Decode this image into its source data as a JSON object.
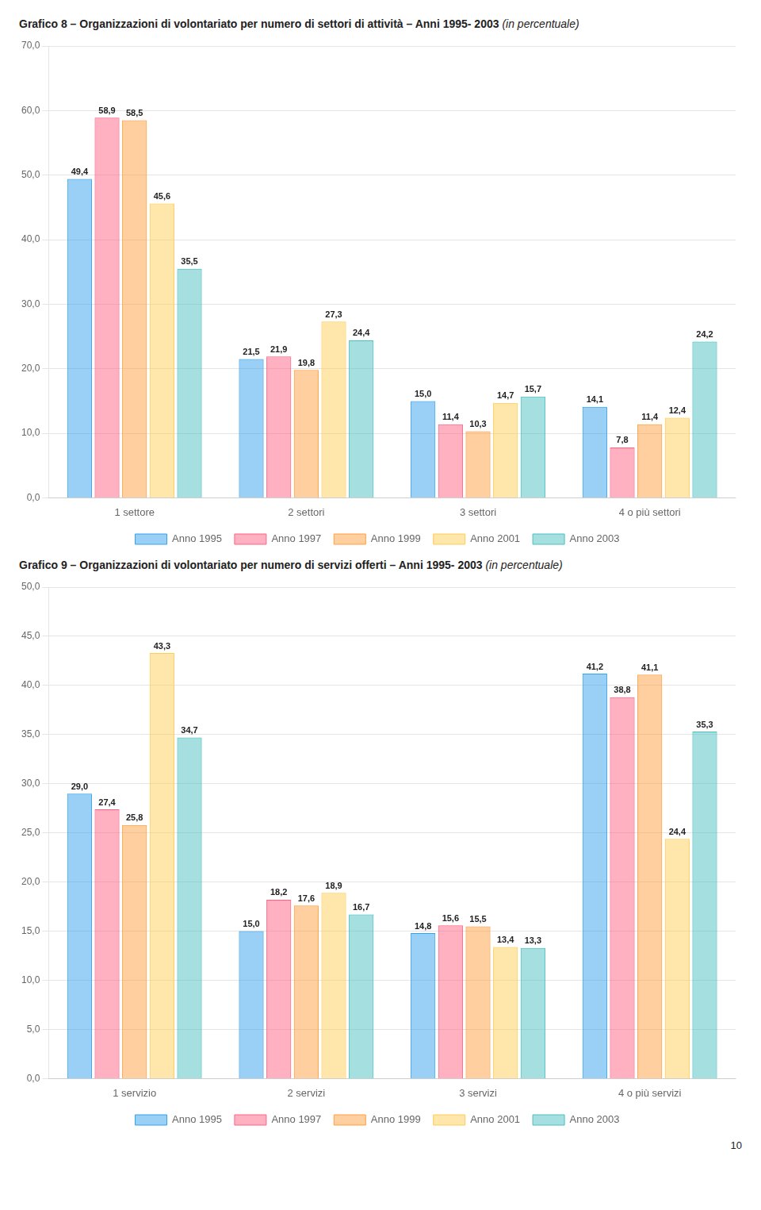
{
  "chart_data": [
    {
      "type": "bar",
      "title": "Grafico 8 – Organizzazioni di volontariato per numero di settori di attività – Anni 1995- 2003",
      "subtitle": "(in percentuale)",
      "categories": [
        "1 settore",
        "2 settori",
        "3 settori",
        "4 o più settori"
      ],
      "series": [
        {
          "name": "Anno 1995",
          "values": [
            49.4,
            21.5,
            15.0,
            14.1
          ],
          "value_labels": [
            "49,4",
            "21,5",
            "15,0",
            "14,1"
          ]
        },
        {
          "name": "Anno 1997",
          "values": [
            58.9,
            21.9,
            11.4,
            7.8
          ],
          "value_labels": [
            "58,9",
            "21,9",
            "11,4",
            "7,8"
          ]
        },
        {
          "name": "Anno 1999",
          "values": [
            58.5,
            19.8,
            10.3,
            11.4
          ],
          "value_labels": [
            "58,5",
            "19,8",
            "10,3",
            "11,4"
          ]
        },
        {
          "name": "Anno 2001",
          "values": [
            45.6,
            27.3,
            14.7,
            12.4
          ],
          "value_labels": [
            "45,6",
            "27,3",
            "14,7",
            "12,4"
          ]
        },
        {
          "name": "Anno 2003",
          "values": [
            35.5,
            24.4,
            15.7,
            24.2
          ],
          "value_labels": [
            "35,5",
            "24,4",
            "15,7",
            "24,2"
          ]
        }
      ],
      "ylim": [
        0,
        70
      ],
      "yticks": [
        {
          "value": 0,
          "label": "0,0"
        },
        {
          "value": 10,
          "label": "10,0"
        },
        {
          "value": 20,
          "label": "20,0"
        },
        {
          "value": 30,
          "label": "30,0"
        },
        {
          "value": 40,
          "label": "40,0"
        },
        {
          "value": 50,
          "label": "50,0"
        },
        {
          "value": 60,
          "label": "60,0"
        },
        {
          "value": 70,
          "label": "70,0"
        }
      ],
      "grid": true,
      "legend": "bottom",
      "data_labels": true
    },
    {
      "type": "bar",
      "title": "Grafico 9 – Organizzazioni di volontariato per numero di servizi offerti – Anni 1995- 2003",
      "subtitle": "(in percentuale)",
      "categories": [
        "1 servizio",
        "2 servizi",
        "3 servizi",
        "4 o più servizi"
      ],
      "series": [
        {
          "name": "Anno 1995",
          "values": [
            29.0,
            15.0,
            14.8,
            41.2
          ],
          "value_labels": [
            "29,0",
            "15,0",
            "14,8",
            "41,2"
          ]
        },
        {
          "name": "Anno 1997",
          "values": [
            27.4,
            18.2,
            15.6,
            38.8
          ],
          "value_labels": [
            "27,4",
            "18,2",
            "15,6",
            "38,8"
          ]
        },
        {
          "name": "Anno 1999",
          "values": [
            25.8,
            17.6,
            15.5,
            41.1
          ],
          "value_labels": [
            "25,8",
            "17,6",
            "15,5",
            "41,1"
          ]
        },
        {
          "name": "Anno 2001",
          "values": [
            43.3,
            18.9,
            13.4,
            24.4
          ],
          "value_labels": [
            "43,3",
            "18,9",
            "13,4",
            "24,4"
          ]
        },
        {
          "name": "Anno 2003",
          "values": [
            34.7,
            16.7,
            13.3,
            35.3
          ],
          "value_labels": [
            "34,7",
            "16,7",
            "13,3",
            "35,3"
          ]
        }
      ],
      "ylim": [
        0,
        50
      ],
      "yticks": [
        {
          "value": 0,
          "label": "0,0"
        },
        {
          "value": 5,
          "label": "5,0"
        },
        {
          "value": 10,
          "label": "10,0"
        },
        {
          "value": 15,
          "label": "15,0"
        },
        {
          "value": 20,
          "label": "20,0"
        },
        {
          "value": 25,
          "label": "25,0"
        },
        {
          "value": 30,
          "label": "30,0"
        },
        {
          "value": 35,
          "label": "35,0"
        },
        {
          "value": 40,
          "label": "40,0"
        },
        {
          "value": 45,
          "label": "45,0"
        },
        {
          "value": 50,
          "label": "50,0"
        }
      ],
      "grid": true,
      "legend": "bottom",
      "data_labels": true,
      "annotations": [
        "10"
      ]
    }
  ]
}
